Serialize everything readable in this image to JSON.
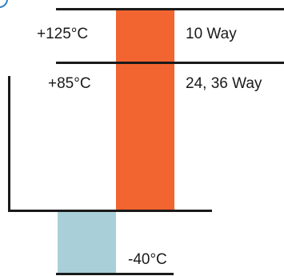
{
  "labels": {
    "temp_high": "+125°C",
    "temp_mid": "+85°C",
    "temp_low": "-40°C",
    "way_high": "10 Way",
    "way_mid": "24, 36 Way"
  },
  "colors": {
    "hot_bar": "#f26430",
    "cold_bar": "#a9d0d8",
    "line": "#1a1a1a",
    "corner_circle": "#2f7fc1"
  }
}
